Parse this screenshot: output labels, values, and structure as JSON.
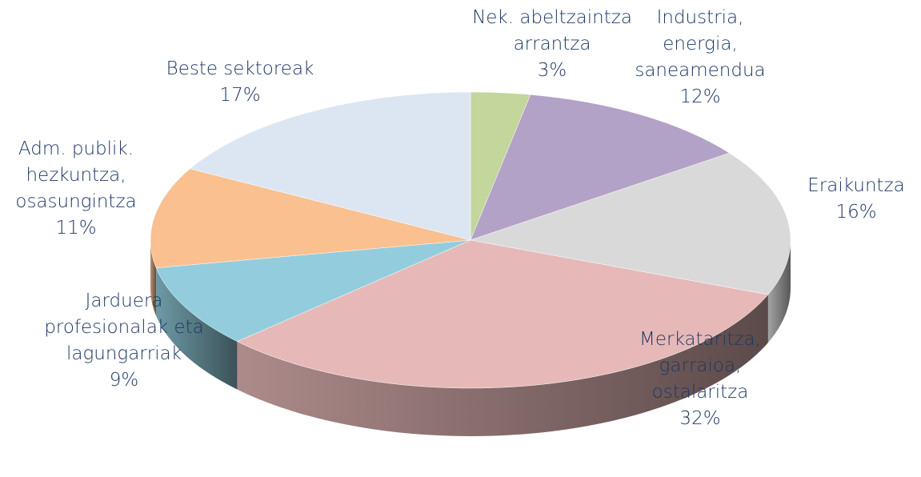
{
  "chart_data": {
    "type": "pie",
    "categories": [
      "Nek. abeltzaintza\narrantza",
      "Industria,\nenergia,\nsaneamendua",
      "Eraikuntza",
      "Merkataritza,\ngarraioa,\nostalaritza",
      "Jarduera\nprofesionalak eta\nlagungarriak",
      "Adm. publik.\nhezkuntza,\nosasungintza",
      "Beste sektoreak"
    ],
    "values": [
      3,
      12,
      16,
      32,
      9,
      11,
      17
    ],
    "value_labels": [
      "3%",
      "12%",
      "16%",
      "32%",
      "9%",
      "11%",
      "17%"
    ],
    "colors": [
      "#c3d69b",
      "#b3a2c7",
      "#d9d9d9",
      "#e6b9b8",
      "#93cddd",
      "#fac090",
      "#dce6f2"
    ]
  }
}
